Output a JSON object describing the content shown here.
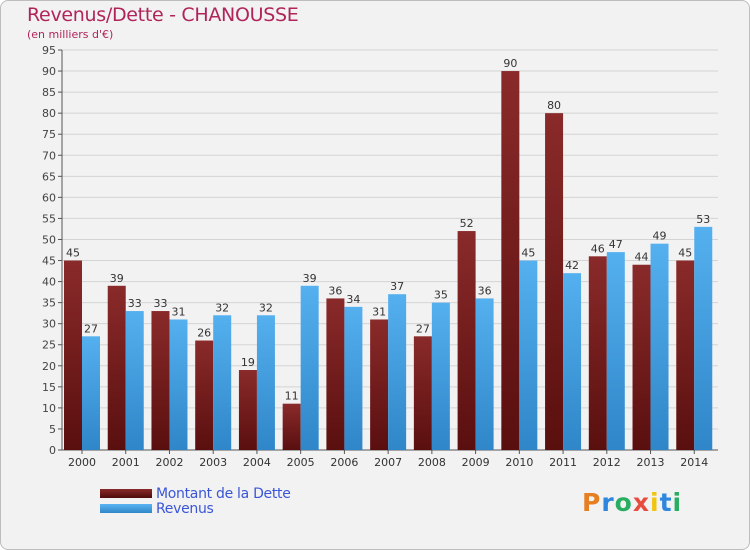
{
  "title": "Revenus/Dette - CHANOUSSE",
  "subtitle": "(en milliers d'€)",
  "legend": [
    {
      "label": "Montant de la Dette",
      "color": "#7a1c1c"
    },
    {
      "label": "Revenus",
      "color": "#4aa3e6"
    }
  ],
  "logo": {
    "p": "P",
    "r": "r",
    "o": "o",
    "x": "x",
    "i1": "i",
    "t": "t",
    "i2": "i"
  },
  "chart_data": {
    "type": "bar",
    "title": "Revenus/Dette - CHANOUSSE",
    "ylabel": "(en milliers d'€)",
    "categories": [
      "2000",
      "2001",
      "2002",
      "2003",
      "2004",
      "2005",
      "2006",
      "2007",
      "2008",
      "2009",
      "2010",
      "2011",
      "2012",
      "2013",
      "2014"
    ],
    "series": [
      {
        "name": "Montant de la Dette",
        "color": "#7a1c1c",
        "values": [
          45,
          39,
          33,
          26,
          19,
          11,
          36,
          31,
          27,
          52,
          90,
          80,
          46,
          44,
          45
        ]
      },
      {
        "name": "Revenus",
        "color": "#4aa3e6",
        "values": [
          27,
          33,
          31,
          32,
          32,
          39,
          34,
          37,
          35,
          36,
          45,
          42,
          47,
          49,
          53
        ]
      }
    ],
    "ylim": [
      0,
      95
    ],
    "yticks": [
      0,
      5,
      10,
      15,
      20,
      25,
      30,
      35,
      40,
      45,
      50,
      55,
      60,
      65,
      70,
      75,
      80,
      85,
      90,
      95
    ],
    "grid": true
  }
}
